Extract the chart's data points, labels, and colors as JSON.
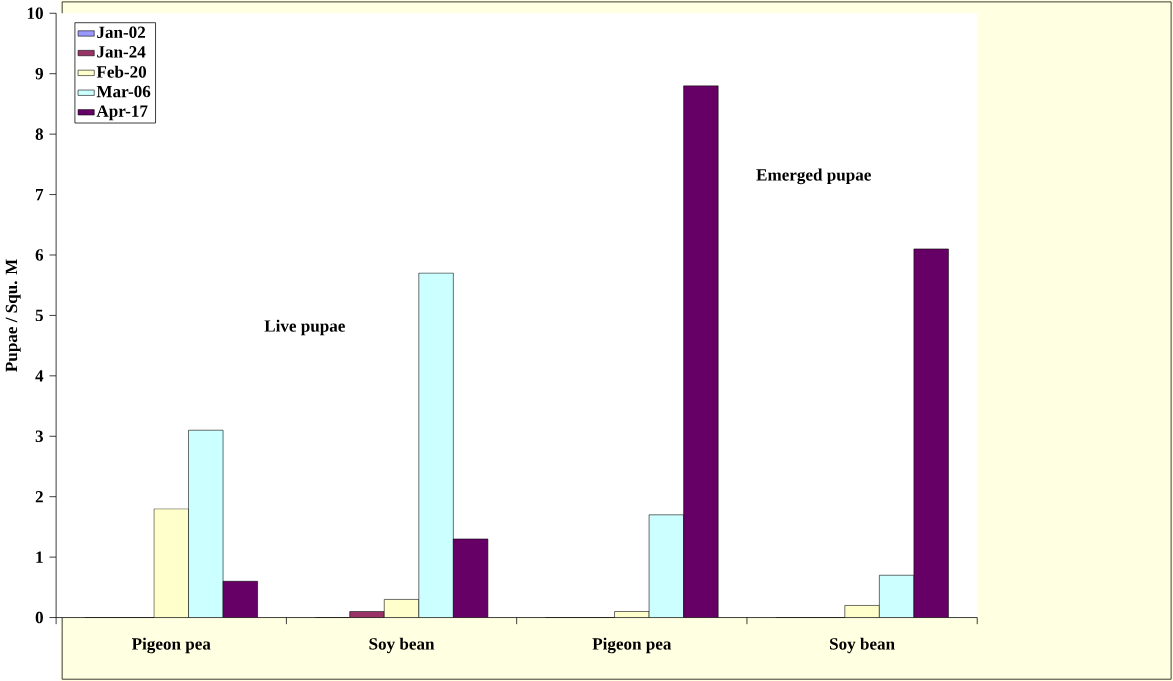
{
  "chart_data": {
    "type": "bar",
    "ylabel": "Pupae / Squ. M",
    "categories": [
      "Pigeon pea",
      "Soy bean",
      "Pigeon pea",
      "Soy bean"
    ],
    "series": [
      {
        "name": "Jan-02",
        "color": "#9999ff",
        "values": [
          0,
          0,
          0,
          0
        ]
      },
      {
        "name": "Jan-24",
        "color": "#993366",
        "values": [
          0,
          0.1,
          0,
          0
        ]
      },
      {
        "name": "Feb-20",
        "color": "#ffffcc",
        "values": [
          1.8,
          0.3,
          0.1,
          0.2
        ]
      },
      {
        "name": "Mar-06",
        "color": "#ccffff",
        "values": [
          3.1,
          5.7,
          1.7,
          0.7
        ]
      },
      {
        "name": "Apr-17",
        "color": "#660066",
        "values": [
          0.6,
          1.3,
          8.8,
          6.1
        ]
      }
    ],
    "ylim": [
      0,
      10
    ],
    "yticks": [
      0,
      1,
      2,
      3,
      4,
      5,
      6,
      7,
      8,
      9,
      10
    ],
    "grid": false,
    "legend": "top left",
    "annotations": [
      "Live pupae",
      "Emerged pupae"
    ]
  }
}
